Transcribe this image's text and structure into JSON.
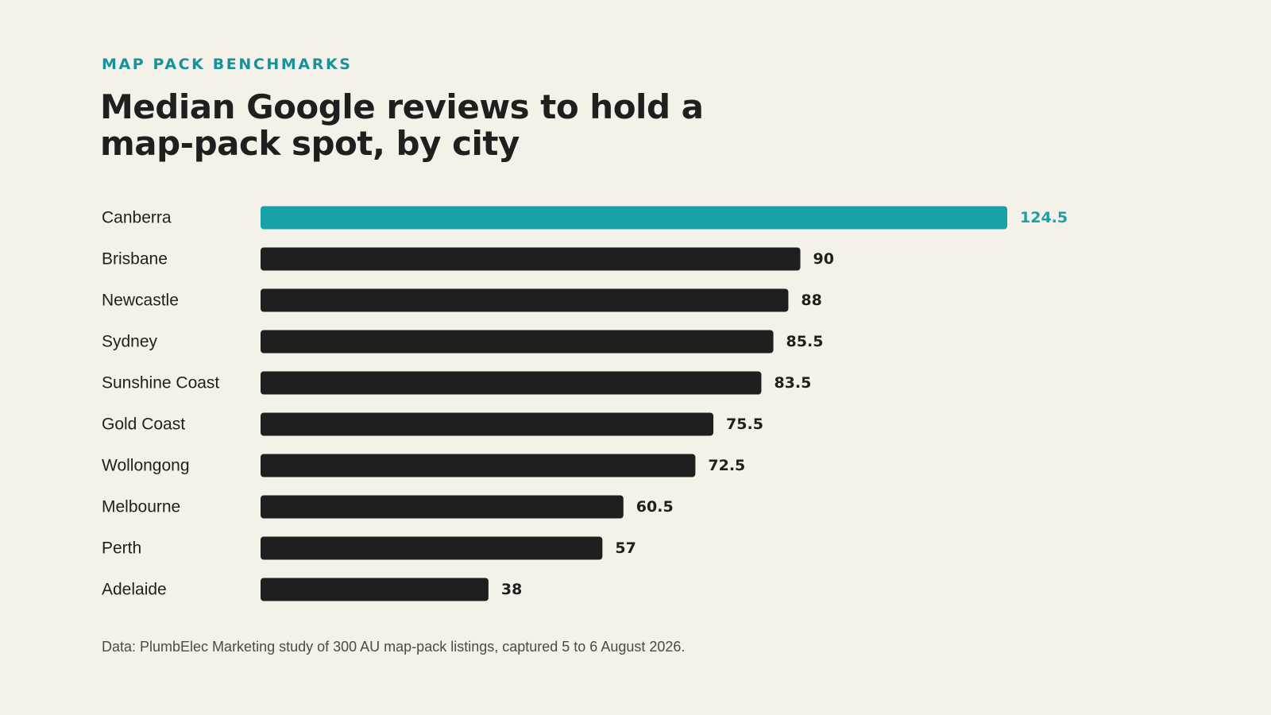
{
  "header": {
    "eyebrow": "MAP PACK BENCHMARKS",
    "title": "Median Google reviews to hold a map-pack spot, by city"
  },
  "footnote": "Data: PlumbElec Marketing study of 300 AU map-pack listings, captured 5 to 6 August 2026.",
  "colors": {
    "background": "#f4f1e9",
    "highlight": "#17a2a7",
    "highlight_label": "#1aa0a8",
    "bar": "#1f1f1d",
    "text": "#1f1f1d",
    "eyebrow": "#17919a"
  },
  "chart_data": {
    "type": "bar",
    "orientation": "horizontal",
    "categories": [
      "Canberra",
      "Brisbane",
      "Newcastle",
      "Sydney",
      "Sunshine Coast",
      "Gold Coast",
      "Wollongong",
      "Melbourne",
      "Perth",
      "Adelaide"
    ],
    "values": [
      124.5,
      90,
      88,
      85.5,
      83.5,
      75.5,
      72.5,
      60.5,
      57,
      38
    ],
    "value_labels": [
      "124.5",
      "90",
      "88",
      "85.5",
      "83.5",
      "75.5",
      "72.5",
      "60.5",
      "57",
      "38"
    ],
    "highlight_category": "Canberra",
    "xlim": [
      0,
      124.5
    ],
    "grid": false,
    "legend": "none",
    "axes_visible": false
  }
}
